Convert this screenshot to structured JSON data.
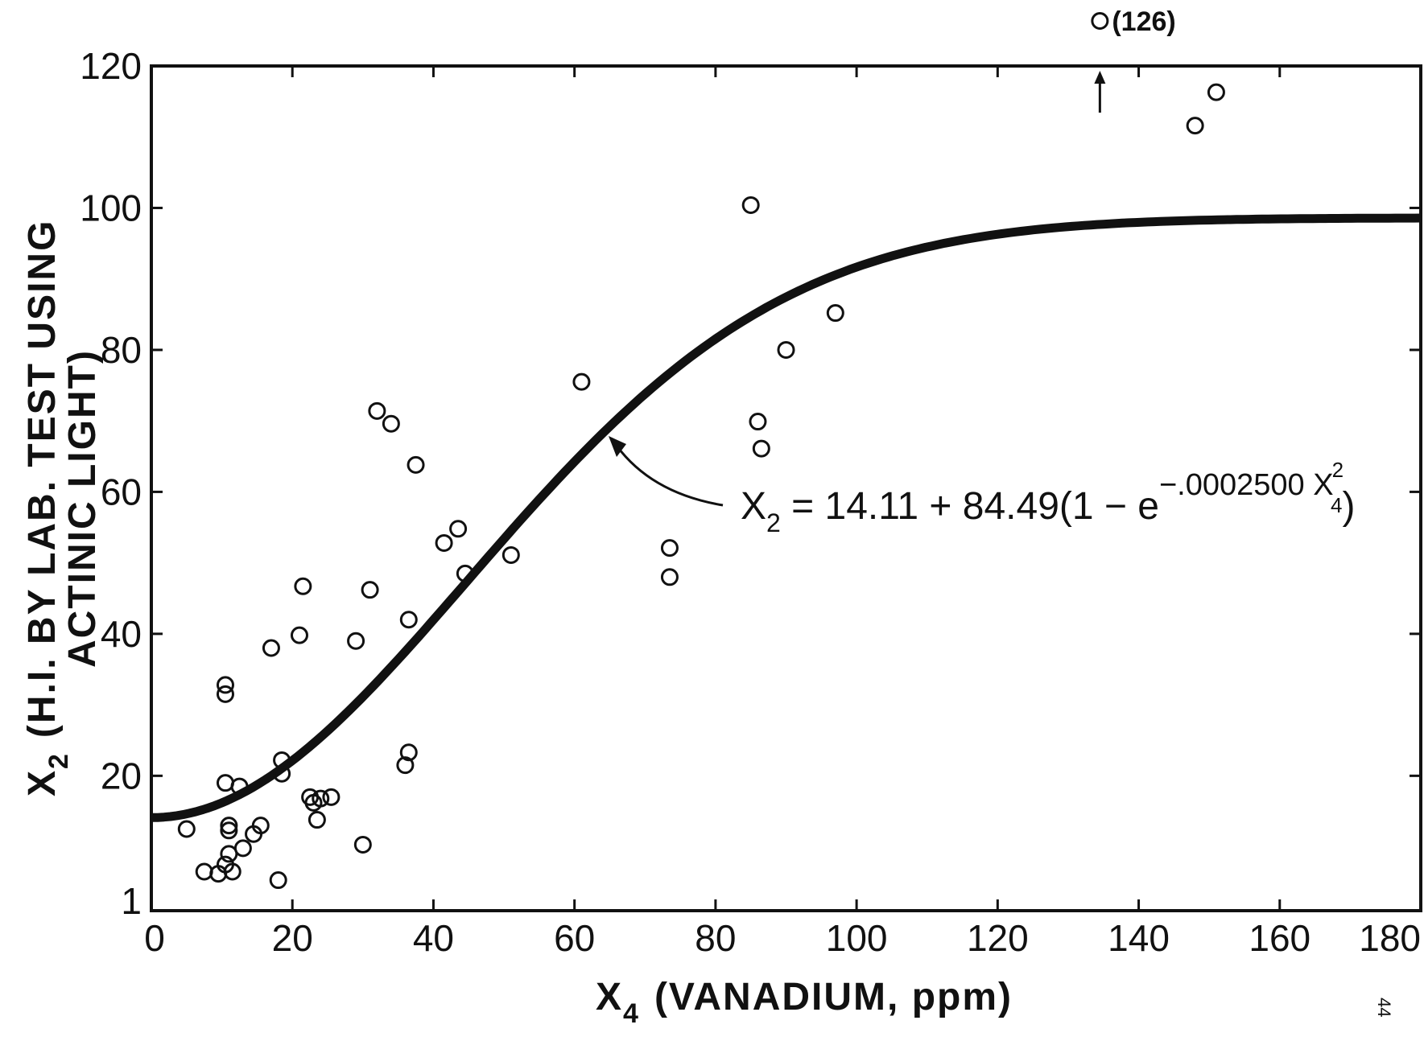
{
  "chart_data": {
    "type": "scatter",
    "x_axis": {
      "range": [
        0,
        180
      ],
      "ticks": [
        0,
        20,
        40,
        60,
        80,
        100,
        120,
        140,
        160,
        180
      ],
      "tick_labels": [
        "0",
        "20",
        "40",
        "60",
        "80",
        "100",
        "120",
        "140",
        "160",
        "180"
      ],
      "label_main": "X",
      "label_sub": "4",
      "label_rest": "(VANADIUM, ppm)"
    },
    "y_axis": {
      "range": [
        1,
        120
      ],
      "ticks": [
        1,
        20,
        40,
        60,
        80,
        100,
        120
      ],
      "tick_labels": [
        "1",
        "20",
        "40",
        "60",
        "80",
        "100",
        "120"
      ],
      "label_main": "X",
      "label_sub": "2",
      "label_line1": "(H.I. BY LAB. TEST USING",
      "label_line2": "ACTINIC LIGHT)"
    },
    "points": [
      {
        "x": 5,
        "y": 12.5
      },
      {
        "x": 7.5,
        "y": 6.5
      },
      {
        "x": 9.5,
        "y": 6.2
      },
      {
        "x": 10.5,
        "y": 7.5
      },
      {
        "x": 11,
        "y": 9
      },
      {
        "x": 11.5,
        "y": 6.5
      },
      {
        "x": 11,
        "y": 12.3
      },
      {
        "x": 11,
        "y": 13
      },
      {
        "x": 10.5,
        "y": 19
      },
      {
        "x": 12.5,
        "y": 18.5
      },
      {
        "x": 10.5,
        "y": 31.5
      },
      {
        "x": 10.5,
        "y": 32.8
      },
      {
        "x": 13,
        "y": 9.8
      },
      {
        "x": 14.5,
        "y": 11.8
      },
      {
        "x": 15.5,
        "y": 13
      },
      {
        "x": 17,
        "y": 38
      },
      {
        "x": 18,
        "y": 5.3
      },
      {
        "x": 18.5,
        "y": 20.3
      },
      {
        "x": 18.5,
        "y": 22.2
      },
      {
        "x": 21,
        "y": 39.8
      },
      {
        "x": 21.5,
        "y": 46.7
      },
      {
        "x": 22.5,
        "y": 17
      },
      {
        "x": 23,
        "y": 16.2
      },
      {
        "x": 23.5,
        "y": 13.8
      },
      {
        "x": 24,
        "y": 16.8
      },
      {
        "x": 25.5,
        "y": 17
      },
      {
        "x": 29,
        "y": 39
      },
      {
        "x": 30,
        "y": 10.3
      },
      {
        "x": 31,
        "y": 46.2
      },
      {
        "x": 32,
        "y": 71.4
      },
      {
        "x": 34,
        "y": 69.6
      },
      {
        "x": 36,
        "y": 21.5
      },
      {
        "x": 36.5,
        "y": 23.3
      },
      {
        "x": 36.5,
        "y": 42
      },
      {
        "x": 37.5,
        "y": 63.8
      },
      {
        "x": 41.5,
        "y": 52.8
      },
      {
        "x": 43.5,
        "y": 54.8
      },
      {
        "x": 44.5,
        "y": 48.5
      },
      {
        "x": 51,
        "y": 51.1
      },
      {
        "x": 61,
        "y": 75.5
      },
      {
        "x": 73.5,
        "y": 48
      },
      {
        "x": 73.5,
        "y": 52.1
      },
      {
        "x": 85,
        "y": 100.4
      },
      {
        "x": 86,
        "y": 69.9
      },
      {
        "x": 86.5,
        "y": 66.1
      },
      {
        "x": 90,
        "y": 80
      },
      {
        "x": 97,
        "y": 85.2
      },
      {
        "x": 148,
        "y": 111.6
      },
      {
        "x": 151,
        "y": 116.3
      }
    ],
    "off_scale_point": {
      "x": 134.5,
      "label": "(126)"
    },
    "fit": {
      "intercept": 14.11,
      "amplitude": 84.49,
      "coefficient": 0.00025,
      "x_range": [
        0,
        180
      ]
    },
    "equation": {
      "lhs": "X",
      "lhs_sub": "2",
      "body": " = 14.11 + 84.49(1 − e",
      "exponent": "−.0002500 X",
      "exp_sub": "4",
      "exp_sup": "2",
      "close": ")"
    },
    "grid": false,
    "legend": "none"
  },
  "page_number": "44"
}
